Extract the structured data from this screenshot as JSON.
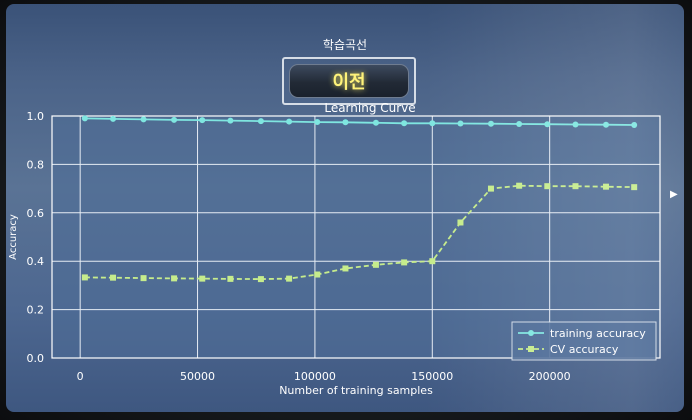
{
  "app_title": "학습곡선",
  "back_button": {
    "label": "이전"
  },
  "edge_marker": "▶",
  "colors": {
    "training": "#7fe6e0",
    "cv": "#c6ec8c",
    "grid": "#e6ecf4",
    "plot_bg": "#4f6d98"
  },
  "chart_data": {
    "type": "line",
    "title": "Learning Curve",
    "xlabel": "Number of training samples",
    "ylabel": "Accuracy",
    "xlim": [
      -12000,
      247000
    ],
    "ylim": [
      0.0,
      1.0
    ],
    "xticks": [
      0,
      50000,
      100000,
      150000,
      200000
    ],
    "xtick_labels": [
      "0",
      "50000",
      "100000",
      "150000",
      "200000"
    ],
    "yticks": [
      0.0,
      0.2,
      0.4,
      0.6,
      0.8,
      1.0
    ],
    "ytick_labels": [
      "0.0",
      "0.2",
      "0.4",
      "0.6",
      "0.8",
      "1.0"
    ],
    "grid": true,
    "legend_position": "bottom-right",
    "x": [
      2000,
      14000,
      27000,
      40000,
      52000,
      64000,
      77000,
      89000,
      101000,
      113000,
      126000,
      138000,
      150000,
      162000,
      175000,
      187000,
      199000,
      211000,
      224000,
      236000
    ],
    "series": [
      {
        "name": "training accuracy",
        "marker": "circle",
        "line": "solid",
        "values": [
          0.99,
          0.988,
          0.986,
          0.984,
          0.983,
          0.981,
          0.979,
          0.977,
          0.975,
          0.974,
          0.972,
          0.97,
          0.97,
          0.969,
          0.968,
          0.967,
          0.966,
          0.965,
          0.964,
          0.963
        ]
      },
      {
        "name": "CV accuracy",
        "marker": "square",
        "line": "dashed",
        "values": [
          0.333,
          0.332,
          0.33,
          0.329,
          0.328,
          0.327,
          0.326,
          0.328,
          0.345,
          0.37,
          0.385,
          0.395,
          0.4,
          0.56,
          0.7,
          0.712,
          0.71,
          0.71,
          0.708,
          0.706
        ]
      }
    ]
  }
}
